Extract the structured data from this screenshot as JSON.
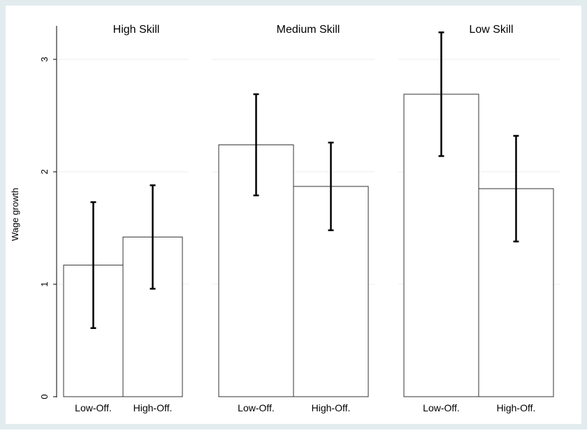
{
  "chart_data": {
    "type": "bar",
    "ylabel": "Wage growth",
    "ylim": [
      0,
      3.3
    ],
    "yticks": [
      0,
      1,
      2,
      3
    ],
    "grid": true,
    "panels": [
      {
        "title": "High Skill",
        "categories": [
          "Low-Off.",
          "High-Off."
        ],
        "values": [
          1.17,
          1.42
        ],
        "ci_low": [
          0.61,
          0.96
        ],
        "ci_high": [
          1.73,
          1.88
        ]
      },
      {
        "title": "Medium Skill",
        "categories": [
          "Low-Off.",
          "High-Off."
        ],
        "values": [
          2.24,
          1.87
        ],
        "ci_low": [
          1.79,
          1.48
        ],
        "ci_high": [
          2.69,
          2.26
        ]
      },
      {
        "title": "Low Skill",
        "categories": [
          "Low-Off.",
          "High-Off."
        ],
        "values": [
          2.69,
          1.85
        ],
        "ci_low": [
          2.14,
          1.38
        ],
        "ci_high": [
          3.24,
          2.32
        ]
      }
    ]
  },
  "colors": {
    "frame": "#e2ecef",
    "bar_fill": "#ffffff",
    "bar_stroke": "#333333",
    "errorbar": "#000000",
    "grid": "#eeeeee",
    "axis": "#000000"
  }
}
